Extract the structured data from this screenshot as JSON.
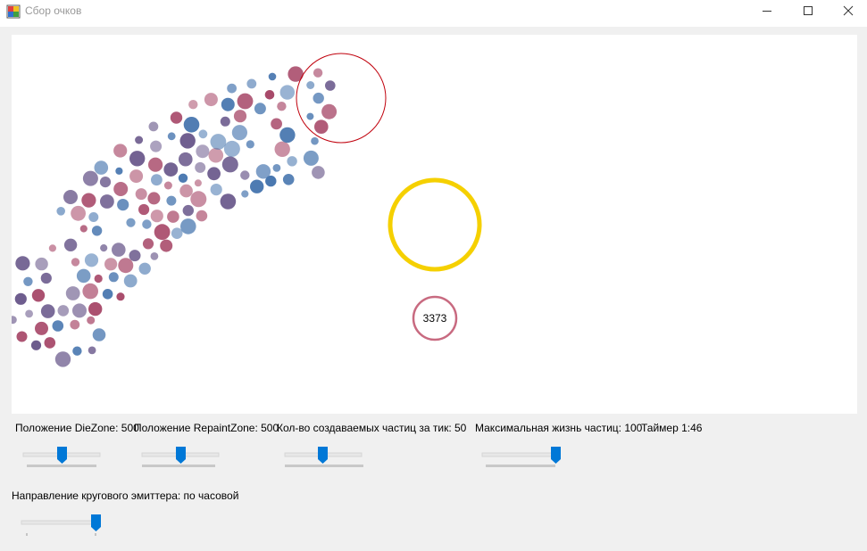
{
  "window": {
    "title": "Сбор очков",
    "icons": [
      "app-icon",
      "minimize-icon",
      "maximize-icon",
      "close-icon"
    ]
  },
  "canvas": {
    "counter_value": "3373",
    "colors": {
      "die_zone": "#c0000c",
      "repaint_zone": "#f5d000",
      "counter_ring": "#c86a80",
      "particle_a": "#4a78b0",
      "particle_b": "#a84a6a",
      "particle_c": "#6b5a8c"
    }
  },
  "controls": {
    "diezone_label": "Положение DieZone: 500",
    "repaintzone_label": "Положение RepaintZone: 500",
    "particles_per_tick_label": "Кол-во создаваемых частиц за тик: 50",
    "max_life_label": "Максимальная жизнь частиц: 100",
    "timer_label": "Таймер 1:46",
    "direction_label": "Направление кругового эмиттера: по часовой",
    "accent_color": "#0078d7"
  }
}
